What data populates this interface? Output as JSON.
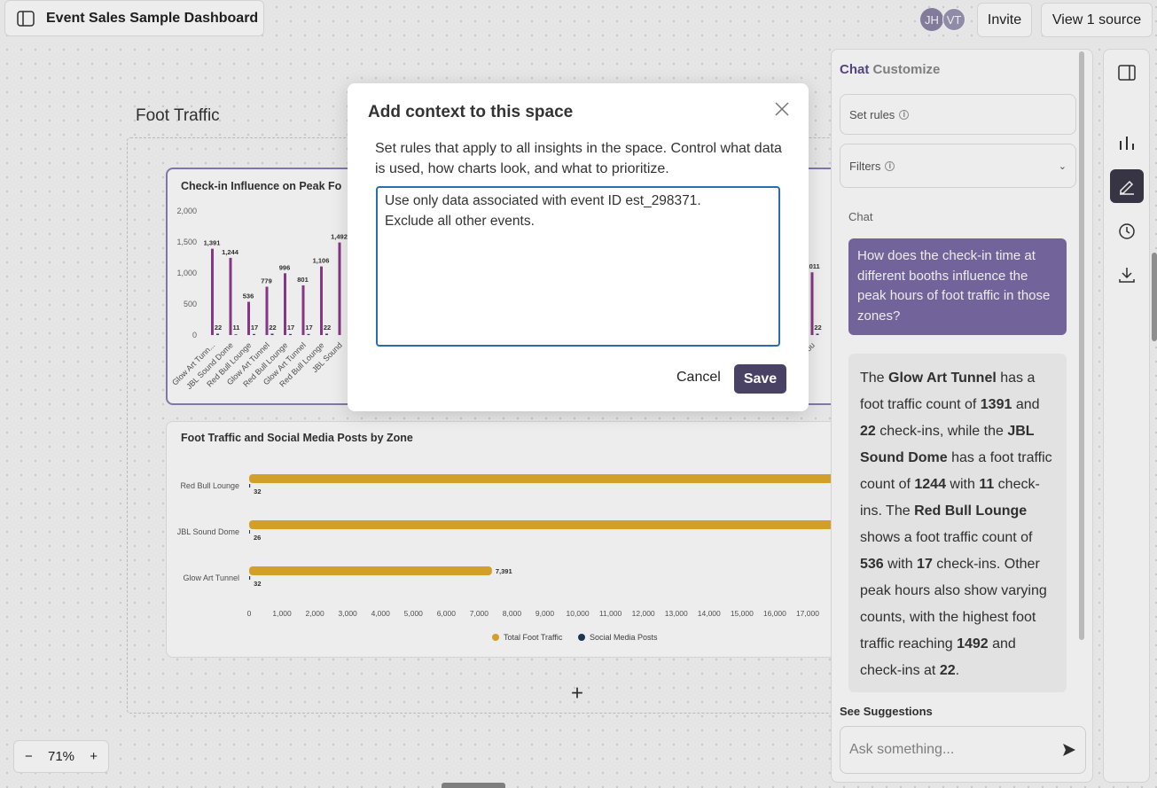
{
  "header": {
    "title": "Event Sales Sample Dashboard",
    "avatars": [
      "JH",
      "VT"
    ],
    "invite": "Invite",
    "sources": "View 1 source"
  },
  "canvas": {
    "section_title": "Foot Traffic",
    "zoom": "71%"
  },
  "chart_data": [
    {
      "type": "bar",
      "title": "Check-in Influence on Peak Fo",
      "categories": [
        "Glow Art Tunn...",
        "JBL Sound Dome",
        "Red Bull Lounge",
        "Glow Art Tunnel",
        "Red Bull Lounge",
        "Glow Art Tunnel",
        "Red Bull Lounge",
        "JBL Sound",
        null,
        null,
        null,
        null,
        null,
        null,
        null,
        null,
        null,
        null,
        null,
        null,
        null,
        null,
        null,
        null,
        null,
        null,
        null,
        null,
        null,
        null,
        null,
        null,
        null,
        "Red Bull Lou"
      ],
      "series": [
        {
          "color": "#8e3c8c",
          "values": [
            1391,
            1244,
            536,
            779,
            996,
            801,
            1106,
            1492,
            null,
            null,
            null,
            null,
            null,
            null,
            null,
            null,
            null,
            null,
            null,
            null,
            null,
            null,
            null,
            null,
            null,
            null,
            null,
            null,
            null,
            null,
            null,
            null,
            null,
            1011
          ],
          "value_labels": [
            "1,391",
            "1,244",
            "536",
            "779",
            "996",
            "801",
            "1,106",
            "1,492",
            null,
            null,
            null,
            null,
            null,
            null,
            null,
            null,
            null,
            null,
            null,
            null,
            null,
            null,
            null,
            null,
            null,
            null,
            null,
            null,
            null,
            null,
            null,
            null,
            null,
            "1,011"
          ]
        },
        {
          "color": "#4b3a7a",
          "values": [
            22,
            11,
            17,
            22,
            17,
            17,
            22,
            null,
            null,
            null,
            null,
            null,
            null,
            null,
            null,
            null,
            null,
            null,
            null,
            null,
            null,
            null,
            null,
            null,
            null,
            null,
            null,
            null,
            null,
            null,
            null,
            null,
            null,
            22
          ]
        }
      ],
      "ylim": [
        0,
        2000
      ],
      "yticks": [
        0,
        500,
        {
          "value": 1000,
          "label": "1,000"
        },
        {
          "value": 1500,
          "label": "1,500"
        },
        {
          "value": 2000,
          "label": "2,000"
        }
      ]
    },
    {
      "type": "horizontal_bar",
      "title": "Foot Traffic and Social Media Posts by Zone",
      "categories": [
        "Red Bull Lounge",
        "JBL Sound Dome",
        "Glow Art Tunnel"
      ],
      "series": [
        {
          "name": "Total Foot Traffic",
          "color": "#e2ad2c",
          "values": [
            18500,
            18500,
            7391
          ],
          "value_labels": [
            null,
            null,
            "7,391"
          ]
        },
        {
          "name": "Social Media Posts",
          "color": "#1e3b5c",
          "values": [
            32,
            26,
            32
          ]
        }
      ],
      "xlim": [
        0,
        18000
      ],
      "xticks": [
        0,
        {
          "value": 1000,
          "label": "1,000"
        },
        {
          "value": 2000,
          "label": "2,000"
        },
        {
          "value": 3000,
          "label": "3,000"
        },
        {
          "value": 4000,
          "label": "4,000"
        },
        {
          "value": 5000,
          "label": "5,000"
        },
        {
          "value": 6000,
          "label": "6,000"
        },
        {
          "value": 7000,
          "label": "7,000"
        },
        {
          "value": 8000,
          "label": "8,000"
        },
        {
          "value": 9000,
          "label": "9,000"
        },
        {
          "value": 10000,
          "label": "10,000"
        },
        {
          "value": 11000,
          "label": "11,000"
        },
        {
          "value": 12000,
          "label": "12,000"
        },
        {
          "value": 13000,
          "label": "13,000"
        },
        {
          "value": 14000,
          "label": "14,000"
        },
        {
          "value": 15000,
          "label": "15,000"
        },
        {
          "value": 16000,
          "label": "16,000"
        },
        {
          "value": 17000,
          "label": "17,000"
        }
      ]
    }
  ],
  "side_panel": {
    "tabs": [
      "Chat",
      "Customize"
    ],
    "set_rules": "Set rules",
    "filters": "Filters",
    "chat_label": "Chat",
    "user_message": "How does the check-in time at different booths influence the peak hours of foot traffic in those zones?",
    "response": [
      {
        "text": "The ",
        "bold": false
      },
      {
        "text": "Glow Art Tunnel",
        "bold": true
      },
      {
        "text": " has a foot traffic count of ",
        "bold": false
      },
      {
        "text": "1391",
        "bold": true
      },
      {
        "text": " and ",
        "bold": false
      },
      {
        "text": "22",
        "bold": true
      },
      {
        "text": " check-ins, while the ",
        "bold": false
      },
      {
        "text": "JBL Sound Dome",
        "bold": true
      },
      {
        "text": " has a foot traffic count of ",
        "bold": false
      },
      {
        "text": "1244",
        "bold": true
      },
      {
        "text": " with ",
        "bold": false
      },
      {
        "text": "11",
        "bold": true
      },
      {
        "text": " check-ins. The ",
        "bold": false
      },
      {
        "text": "Red Bull Lounge",
        "bold": true
      },
      {
        "text": " shows a foot traffic count of ",
        "bold": false
      },
      {
        "text": "536",
        "bold": true
      },
      {
        "text": " with ",
        "bold": false
      },
      {
        "text": "17",
        "bold": true
      },
      {
        "text": " check-ins. Other peak hours also show varying counts, with the highest foot traffic reaching ",
        "bold": false
      },
      {
        "text": "1492",
        "bold": true
      },
      {
        "text": " and check-ins at ",
        "bold": false
      },
      {
        "text": "22",
        "bold": true
      },
      {
        "text": ".",
        "bold": false
      }
    ],
    "suggestions": "See Suggestions",
    "input_placeholder": "Ask something..."
  },
  "modal": {
    "title": "Add context to this space",
    "description": "Set rules that apply to all insights in the space. Control what data is used, how charts look, and what to prioritize.",
    "textarea": "Use only data associated with event ID est_298371.\nExclude all other events.",
    "cancel": "Cancel",
    "save": "Save"
  }
}
